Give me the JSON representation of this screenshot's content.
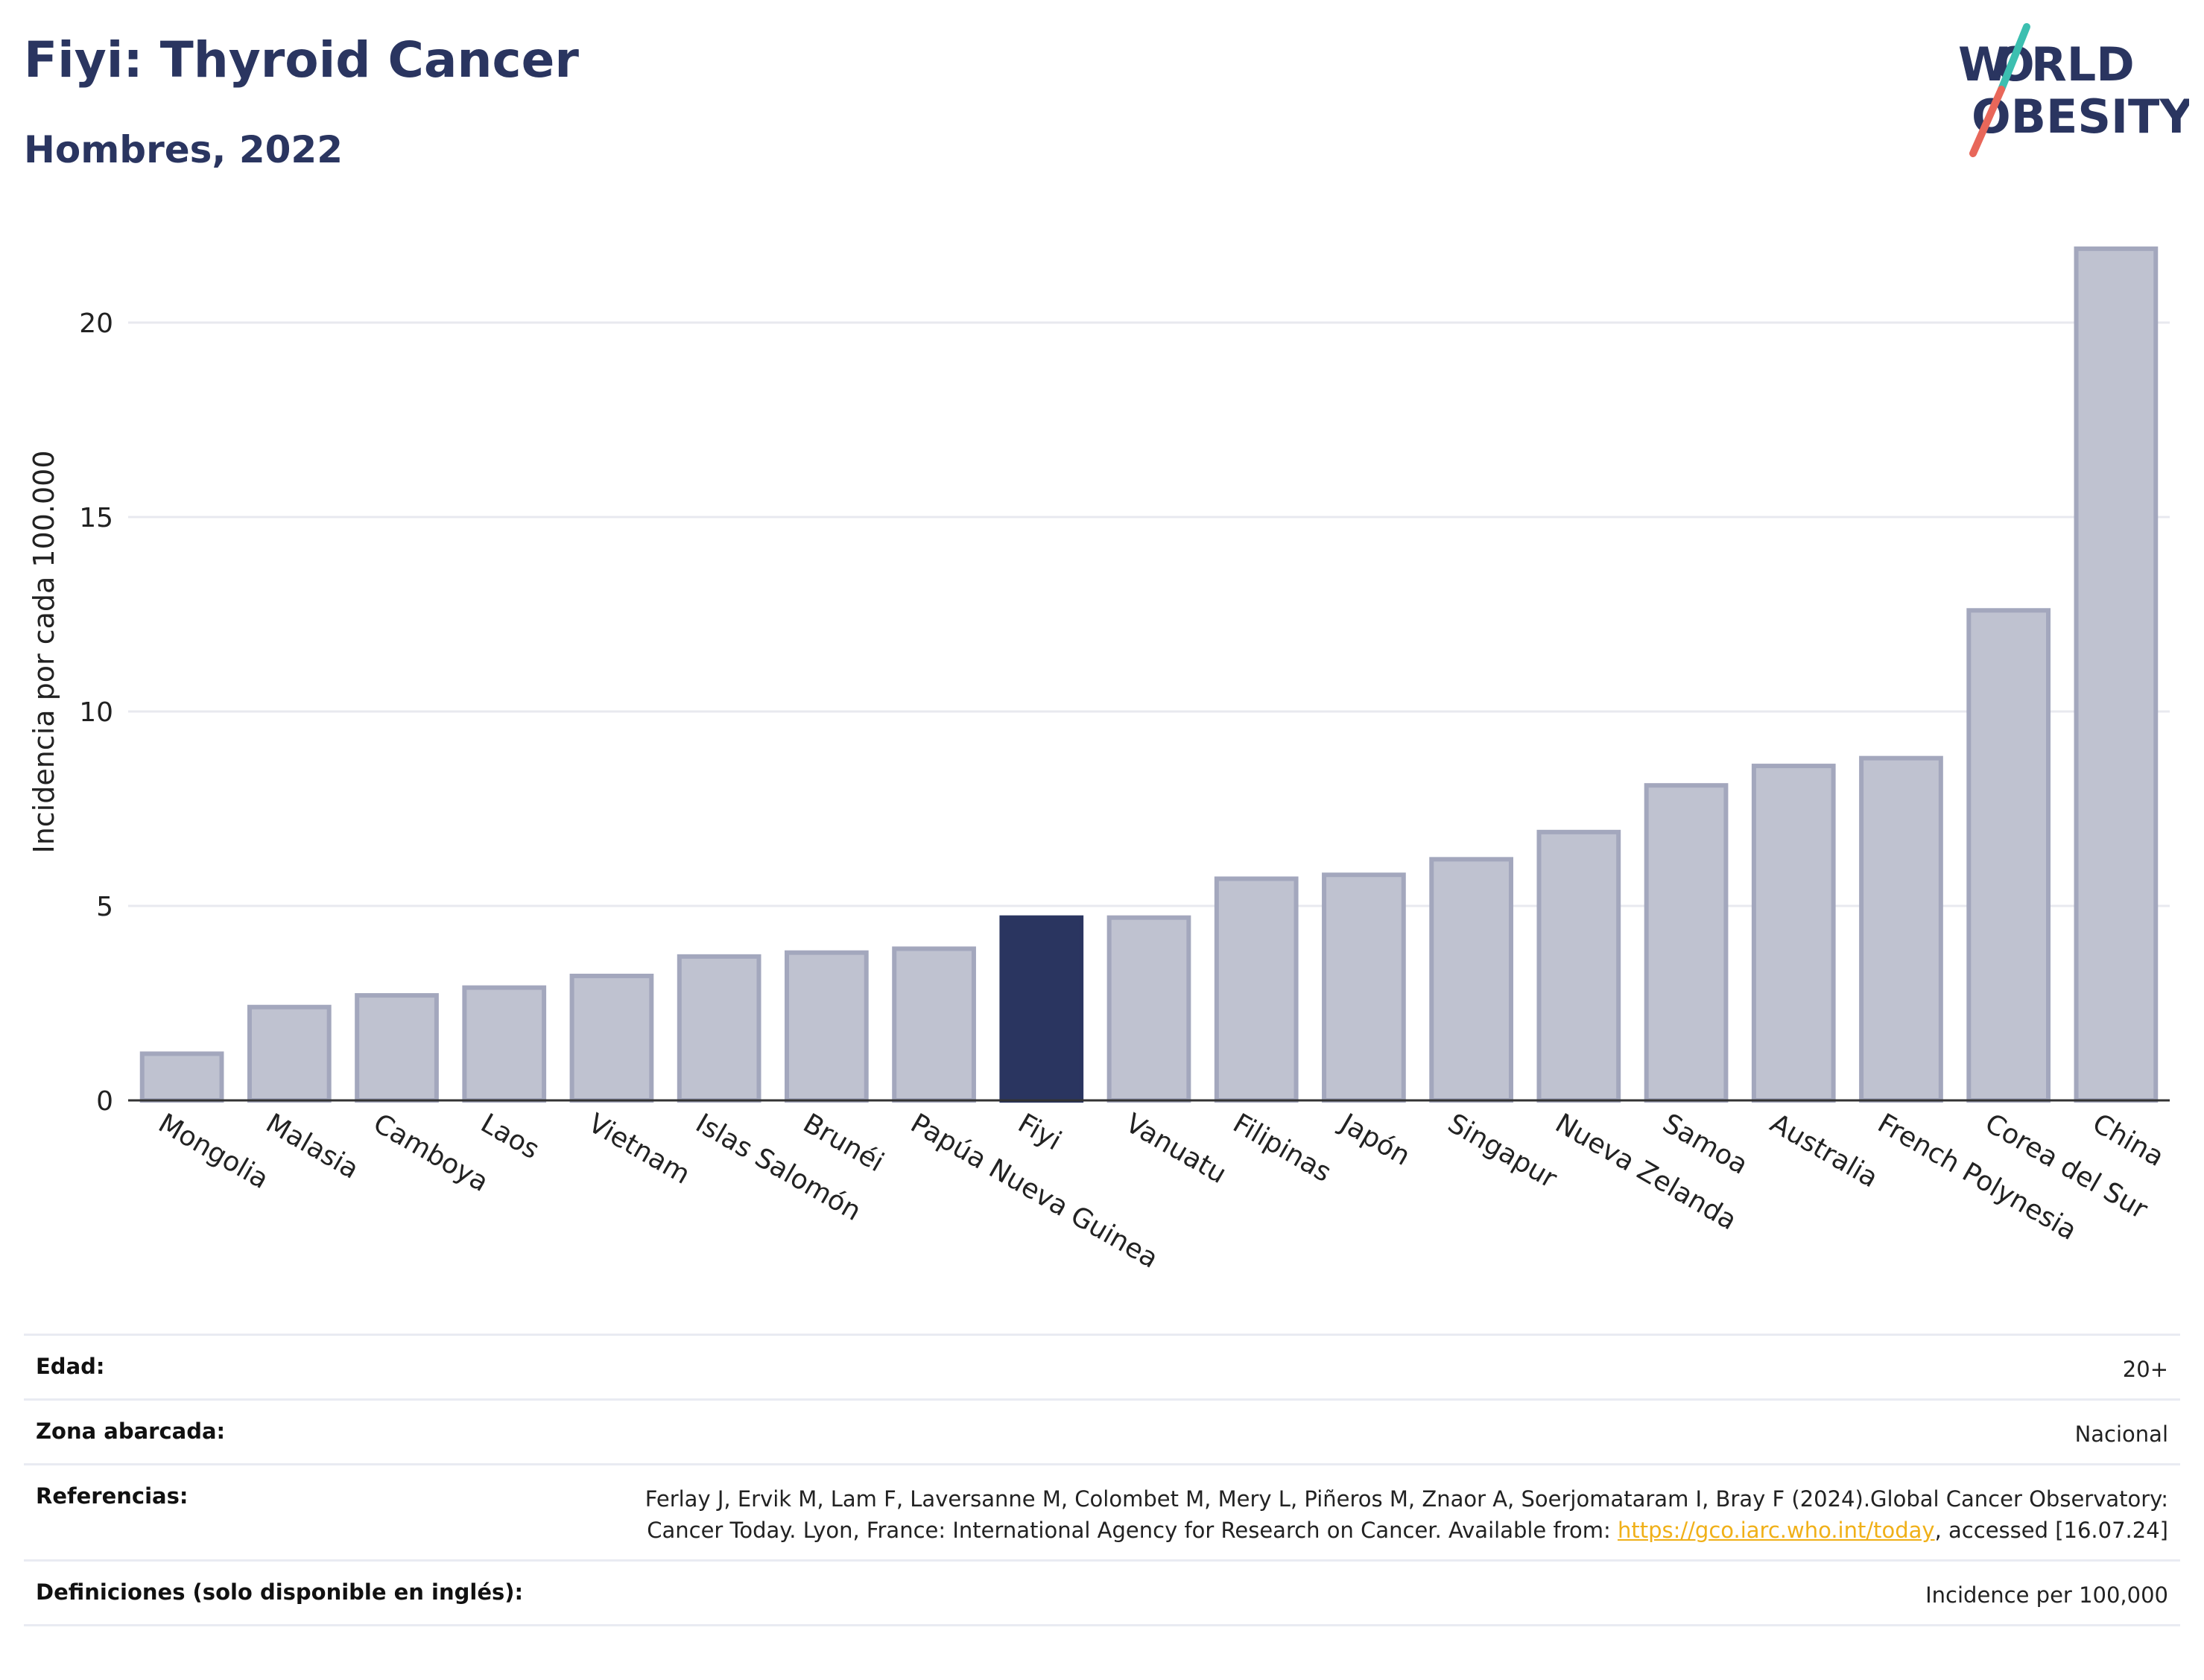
{
  "header": {
    "title": "Fiyi: Thyroid Cancer",
    "subtitle": "Hombres, 2022"
  },
  "logo": {
    "line1": "W RLD",
    "line2": "BESITY",
    "colors": {
      "text": "#2a3560",
      "slash_top": "#3cbfb0",
      "slash_bottom": "#e8675a"
    }
  },
  "chart_data": {
    "type": "bar",
    "ylabel": "Incidencia por cada 100.000",
    "ylim": [
      0,
      22.5
    ],
    "yticks": [
      0,
      5,
      10,
      15,
      20
    ],
    "grid": true,
    "highlight": "Fiyi",
    "colors": {
      "bar": "#bfc2d0",
      "bar_edge": "#a3a7bd",
      "highlight": "#2a3560"
    },
    "categories": [
      "Mongolia",
      "Malasia",
      "Camboya",
      "Laos",
      "Vietnam",
      "Islas Salomón",
      "Brunéi",
      "Papúa Nueva Guinea",
      "Fiyi",
      "Vanuatu",
      "Filipinas",
      "Japón",
      "Singapur",
      "Nueva Zelanda",
      "Samoa",
      "Australia",
      "French Polynesia",
      "Corea del Sur",
      "China"
    ],
    "values": [
      1.2,
      2.4,
      2.7,
      2.9,
      3.2,
      3.7,
      3.8,
      3.9,
      4.7,
      4.7,
      5.7,
      5.8,
      6.2,
      6.9,
      8.1,
      8.6,
      8.8,
      12.6,
      21.9
    ]
  },
  "meta": {
    "age_label": "Edad:",
    "age_value": "20+",
    "zone_label": "Zona abarcada:",
    "zone_value": "Nacional",
    "refs_label": "Referencias:",
    "refs_text_before": "Ferlay J, Ervik M, Lam F, Laversanne M, Colombet M, Mery L, Piñeros M, Znaor A, Soerjomataram I, Bray F (2024).Global Cancer Observatory: Cancer Today. Lyon, France: International Agency for Research on Cancer. Available from: ",
    "refs_link": "https://gco.iarc.who.int/today",
    "refs_text_after": ", accessed [16.07.24]",
    "defs_label": "Definiciones (solo disponible en inglés):",
    "defs_value": "Incidence per 100,000"
  }
}
